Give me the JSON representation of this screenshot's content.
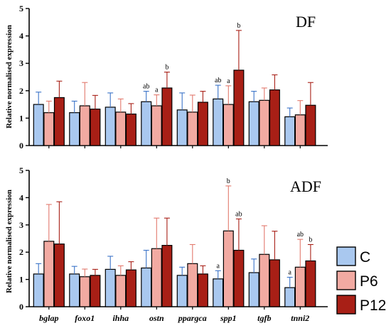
{
  "chart_data": [
    {
      "type": "bar",
      "panel_label": "DF",
      "ylabel": "Relative normalised expression",
      "ylim": [
        0,
        5
      ],
      "yticks": [
        "0",
        "1",
        "2",
        "3",
        "4",
        "5"
      ],
      "categories": [
        "bglap",
        "foxo1",
        "ihha",
        "ostn",
        "ppargca",
        "spp1",
        "tgfb",
        "tnni2"
      ],
      "series": [
        {
          "name": "C",
          "color": "#a9c8ef",
          "values": [
            1.5,
            1.2,
            1.4,
            1.6,
            1.3,
            1.7,
            1.6,
            1.05
          ],
          "errors": [
            0.45,
            0.42,
            0.52,
            0.38,
            0.62,
            0.5,
            0.38,
            0.32
          ],
          "letters": [
            "",
            "",
            "",
            "ab",
            "",
            "ab",
            "",
            ""
          ]
        },
        {
          "name": "P6",
          "color": "#f2aaa2",
          "values": [
            1.2,
            1.45,
            1.22,
            1.45,
            1.22,
            1.5,
            1.65,
            1.12
          ],
          "errors": [
            0.42,
            0.85,
            0.48,
            0.4,
            0.62,
            0.68,
            0.45,
            0.52
          ],
          "letters": [
            "",
            "",
            "",
            "a",
            "",
            "a",
            "",
            ""
          ]
        },
        {
          "name": "P12",
          "color": "#a81f16",
          "values": [
            1.75,
            1.33,
            1.15,
            2.1,
            1.58,
            2.75,
            2.03,
            1.47
          ],
          "errors": [
            0.6,
            0.5,
            0.38,
            0.58,
            0.4,
            1.45,
            0.55,
            0.83
          ],
          "letters": [
            "",
            "",
            "",
            "b",
            "",
            "b",
            "",
            ""
          ]
        }
      ]
    },
    {
      "type": "bar",
      "panel_label": "ADF",
      "ylabel": "Relative normalised expression",
      "ylim": [
        0,
        5
      ],
      "yticks": [
        "0",
        "1",
        "2",
        "3",
        "4",
        "5"
      ],
      "categories": [
        "bglap",
        "foxo1",
        "ihha",
        "ostn",
        "ppargca",
        "spp1",
        "tgfb",
        "tnni2"
      ],
      "series": [
        {
          "name": "C",
          "color": "#a9c8ef",
          "values": [
            1.2,
            1.2,
            1.37,
            1.42,
            1.15,
            1.02,
            1.25,
            0.7
          ],
          "errors": [
            0.38,
            0.28,
            0.48,
            0.65,
            0.3,
            0.3,
            0.5,
            0.38
          ],
          "letters": [
            "",
            "",
            "",
            "",
            "",
            "a",
            "",
            "a"
          ]
        },
        {
          "name": "P6",
          "color": "#f2aaa2",
          "values": [
            2.4,
            1.1,
            1.15,
            2.13,
            1.58,
            2.78,
            1.92,
            1.45
          ],
          "errors": [
            1.35,
            0.28,
            0.35,
            1.12,
            0.7,
            1.65,
            1.05,
            1.02
          ],
          "letters": [
            "",
            "",
            "",
            "",
            "",
            "b",
            "",
            "ab"
          ]
        },
        {
          "name": "P12",
          "color": "#a81f16",
          "values": [
            2.3,
            1.15,
            1.35,
            2.25,
            1.2,
            2.07,
            1.72,
            1.68
          ],
          "errors": [
            1.55,
            0.22,
            0.3,
            1.0,
            0.3,
            1.15,
            1.05,
            0.6
          ],
          "letters": [
            "",
            "",
            "",
            "",
            "",
            "ab",
            "",
            "b"
          ]
        }
      ]
    }
  ],
  "legend": {
    "items": [
      {
        "label": "C",
        "color": "#a9c8ef"
      },
      {
        "label": "P6",
        "color": "#f2aaa2"
      },
      {
        "label": "P12",
        "color": "#a81f16"
      }
    ]
  }
}
